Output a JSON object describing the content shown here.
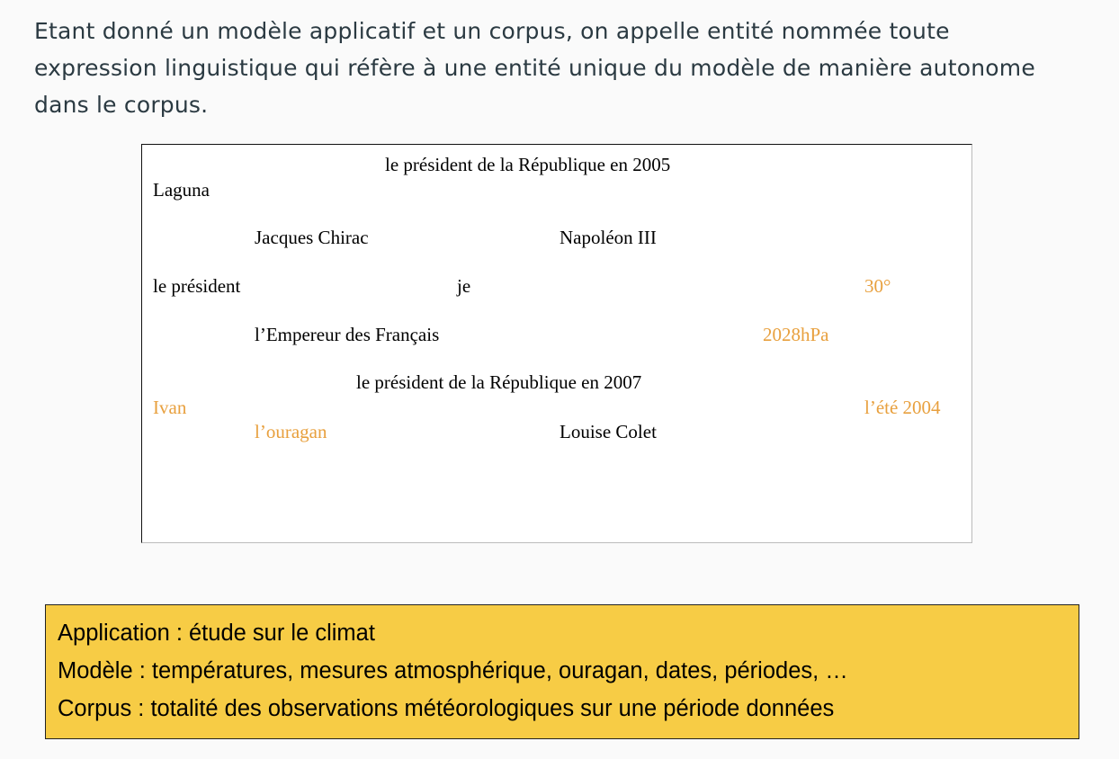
{
  "definition": "Etant donné un modèle applicatif et un corpus, on appelle entité nommée toute expression linguistique qui réfère à une entité unique du modèle de manière autonome dans le corpus.",
  "entities": {
    "president_2005": "le président de la République en 2005",
    "laguna": "Laguna",
    "jacques_chirac": "Jacques Chirac",
    "napoleon_iii": "Napoléon III",
    "le_president": "le président",
    "je": "je",
    "thirty_degrees": "30°",
    "empereur": "l’Empereur des Français",
    "pressure": "2028hPa",
    "president_2007": "le président de la République en 2007",
    "ivan": "Ivan",
    "ete_2004": "l’été 2004",
    "ouragan": "l’ouragan",
    "louise_colet": "Louise Colet"
  },
  "application": {
    "line1": "Application  : étude sur le climat",
    "line2": "Modèle : températures, mesures atmosphérique, ouragan, dates, périodes, …",
    "line3": "Corpus :  totalité des observations météorologiques sur une période données"
  },
  "colors": {
    "climate_entity": "#e8a03e",
    "application_background": "#f7cc45",
    "definition_text": "#2b3a42"
  }
}
